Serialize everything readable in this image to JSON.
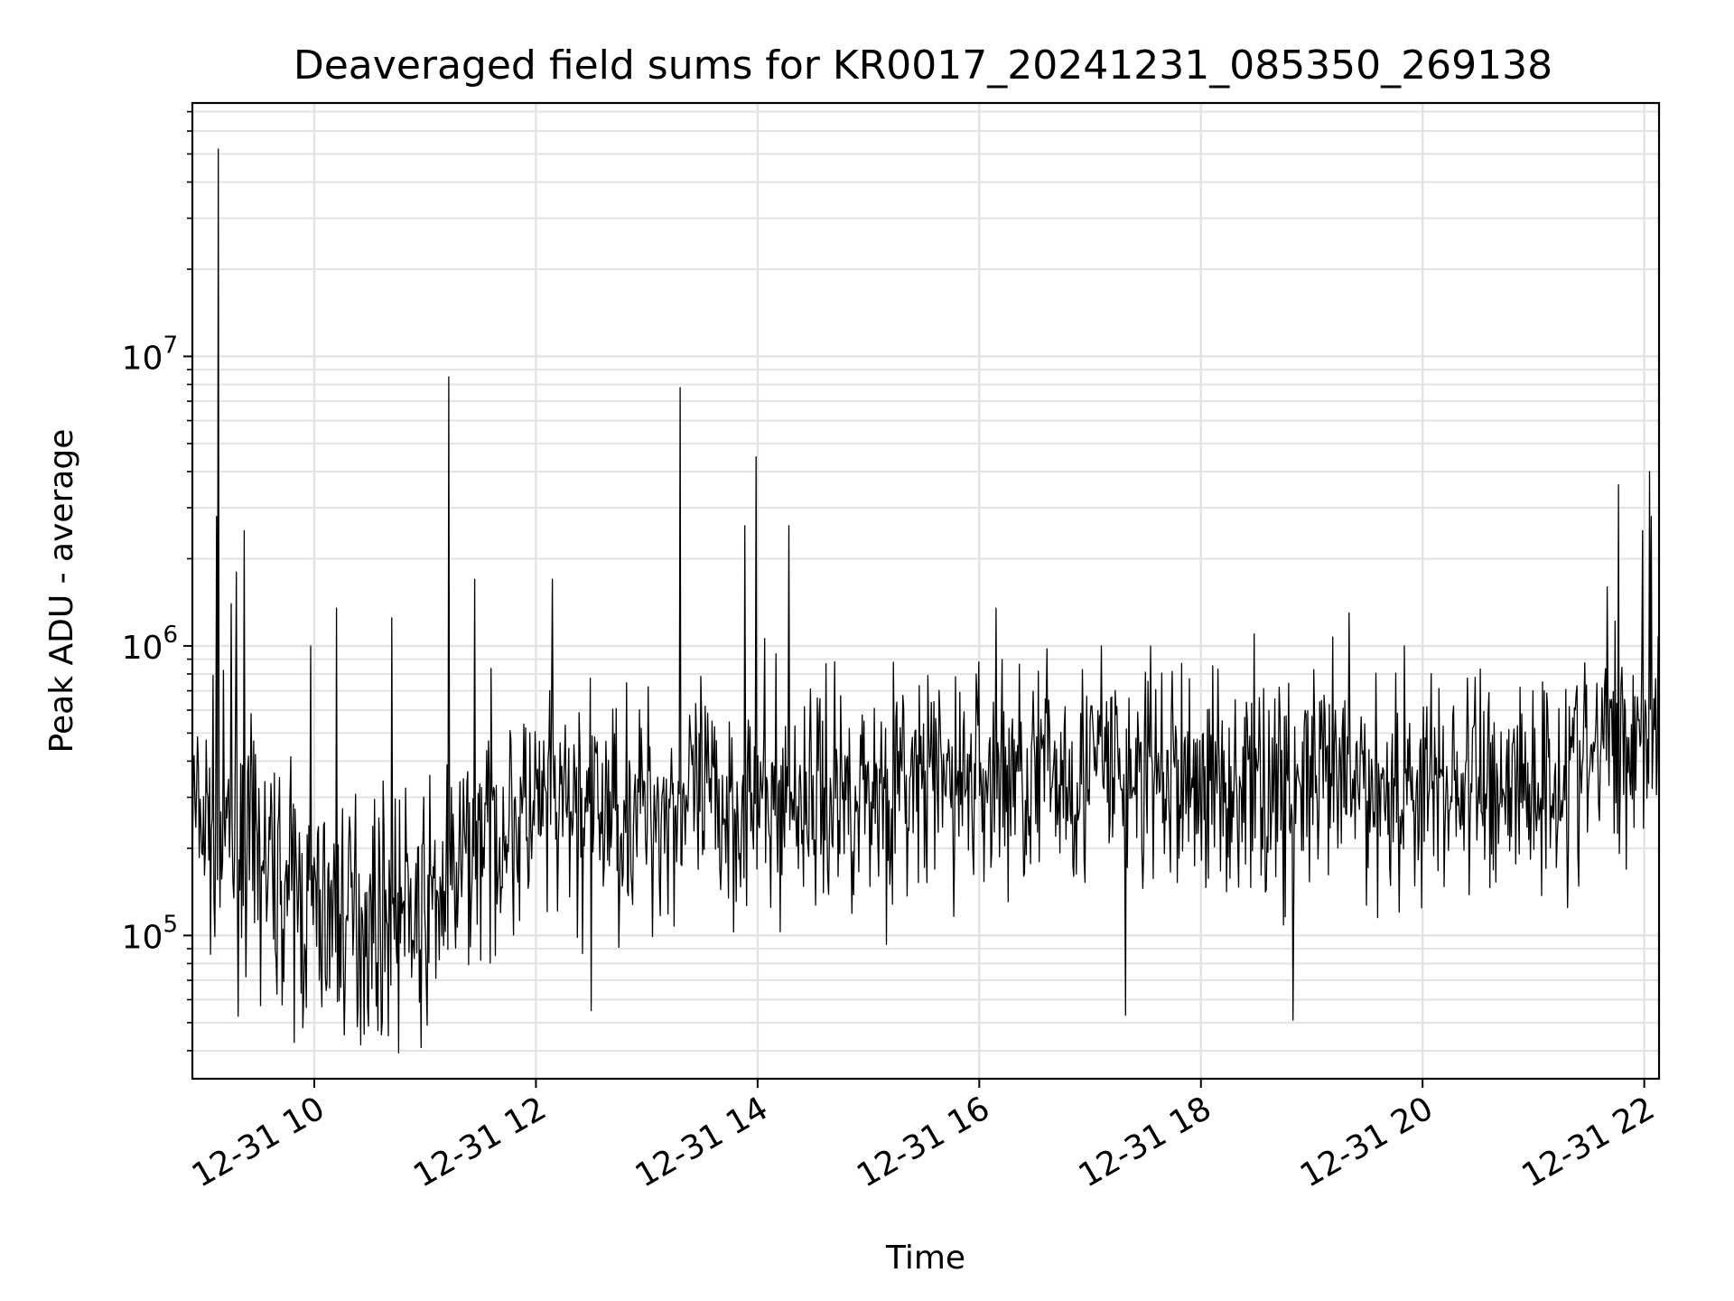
{
  "chart_data": {
    "type": "line",
    "title": "Deaveraged field sums for KR0017_20241231_085350_269138",
    "xlabel": "Time",
    "ylabel": "Peak ADU - average",
    "yscale": "log",
    "grid": true,
    "line_color": "#000000",
    "grid_color": "#e3e3e3",
    "xlim": [
      "2024-12-31 08:54",
      "2024-12-31 22:08"
    ],
    "ylim": [
      32000,
      75000000
    ],
    "x_ticks": [
      {
        "value": "2024-12-31 10:00",
        "label": "12-31 10"
      },
      {
        "value": "2024-12-31 12:00",
        "label": "12-31 12"
      },
      {
        "value": "2024-12-31 14:00",
        "label": "12-31 14"
      },
      {
        "value": "2024-12-31 16:00",
        "label": "12-31 16"
      },
      {
        "value": "2024-12-31 18:00",
        "label": "12-31 18"
      },
      {
        "value": "2024-12-31 20:00",
        "label": "12-31 20"
      },
      {
        "value": "2024-12-31 22:00",
        "label": "12-31 22"
      }
    ],
    "y_ticks": [
      {
        "value": 100000,
        "base": "10",
        "exp": "5"
      },
      {
        "value": 1000000,
        "base": "10",
        "exp": "6"
      },
      {
        "value": 10000000,
        "base": "10",
        "exp": "7"
      }
    ],
    "baseline": [
      {
        "t": "2024-12-31 08:54",
        "y": 260000
      },
      {
        "t": "2024-12-31 09:30",
        "y": 180000
      },
      {
        "t": "2024-12-31 10:00",
        "y": 120000
      },
      {
        "t": "2024-12-31 10:30",
        "y": 115000
      },
      {
        "t": "2024-12-31 11:00",
        "y": 125000
      },
      {
        "t": "2024-12-31 11:15",
        "y": 150000
      },
      {
        "t": "2024-12-31 11:30",
        "y": 230000
      },
      {
        "t": "2024-12-31 12:00",
        "y": 260000
      },
      {
        "t": "2024-12-31 13:00",
        "y": 280000
      },
      {
        "t": "2024-12-31 14:00",
        "y": 290000
      },
      {
        "t": "2024-12-31 15:00",
        "y": 320000
      },
      {
        "t": "2024-12-31 16:00",
        "y": 350000
      },
      {
        "t": "2024-12-31 17:00",
        "y": 370000
      },
      {
        "t": "2024-12-31 18:00",
        "y": 340000
      },
      {
        "t": "2024-12-31 19:00",
        "y": 330000
      },
      {
        "t": "2024-12-31 20:00",
        "y": 330000
      },
      {
        "t": "2024-12-31 21:00",
        "y": 340000
      },
      {
        "t": "2024-12-31 21:30",
        "y": 400000
      },
      {
        "t": "2024-12-31 22:08",
        "y": 560000
      }
    ],
    "spikes": [
      {
        "t": "2024-12-31 09:08",
        "y": 52000000
      },
      {
        "t": "2024-12-31 09:07",
        "y": 2800000
      },
      {
        "t": "2024-12-31 09:22",
        "y": 2500000
      },
      {
        "t": "2024-12-31 09:18",
        "y": 1800000
      },
      {
        "t": "2024-12-31 09:15",
        "y": 1400000
      },
      {
        "t": "2024-12-31 09:58",
        "y": 1000000
      },
      {
        "t": "2024-12-31 10:12",
        "y": 1350000
      },
      {
        "t": "2024-12-31 10:42",
        "y": 1250000
      },
      {
        "t": "2024-12-31 11:13",
        "y": 8500000
      },
      {
        "t": "2024-12-31 11:27",
        "y": 1700000
      },
      {
        "t": "2024-12-31 12:09",
        "y": 1700000
      },
      {
        "t": "2024-12-31 13:18",
        "y": 7800000
      },
      {
        "t": "2024-12-31 13:53",
        "y": 2600000
      },
      {
        "t": "2024-12-31 13:59",
        "y": 4500000
      },
      {
        "t": "2024-12-31 14:17",
        "y": 2600000
      },
      {
        "t": "2024-12-31 16:09",
        "y": 1350000
      },
      {
        "t": "2024-12-31 17:06",
        "y": 1000000
      },
      {
        "t": "2024-12-31 19:20",
        "y": 1300000
      },
      {
        "t": "2024-12-31 19:50",
        "y": 1000000
      },
      {
        "t": "2024-12-31 21:40",
        "y": 1600000
      },
      {
        "t": "2024-12-31 21:46",
        "y": 3600000
      },
      {
        "t": "2024-12-31 21:59",
        "y": 2500000
      },
      {
        "t": "2024-12-31 22:03",
        "y": 4000000
      },
      {
        "t": "2024-12-31 22:04",
        "y": 2800000
      }
    ],
    "dips": [
      {
        "t": "2024-12-31 09:54",
        "y": 48000
      },
      {
        "t": "2024-12-31 10:40",
        "y": 45000
      },
      {
        "t": "2024-12-31 10:58",
        "y": 41000
      },
      {
        "t": "2024-12-31 12:30",
        "y": 55000
      },
      {
        "t": "2024-12-31 17:19",
        "y": 53000
      },
      {
        "t": "2024-12-31 18:50",
        "y": 51000
      }
    ]
  }
}
